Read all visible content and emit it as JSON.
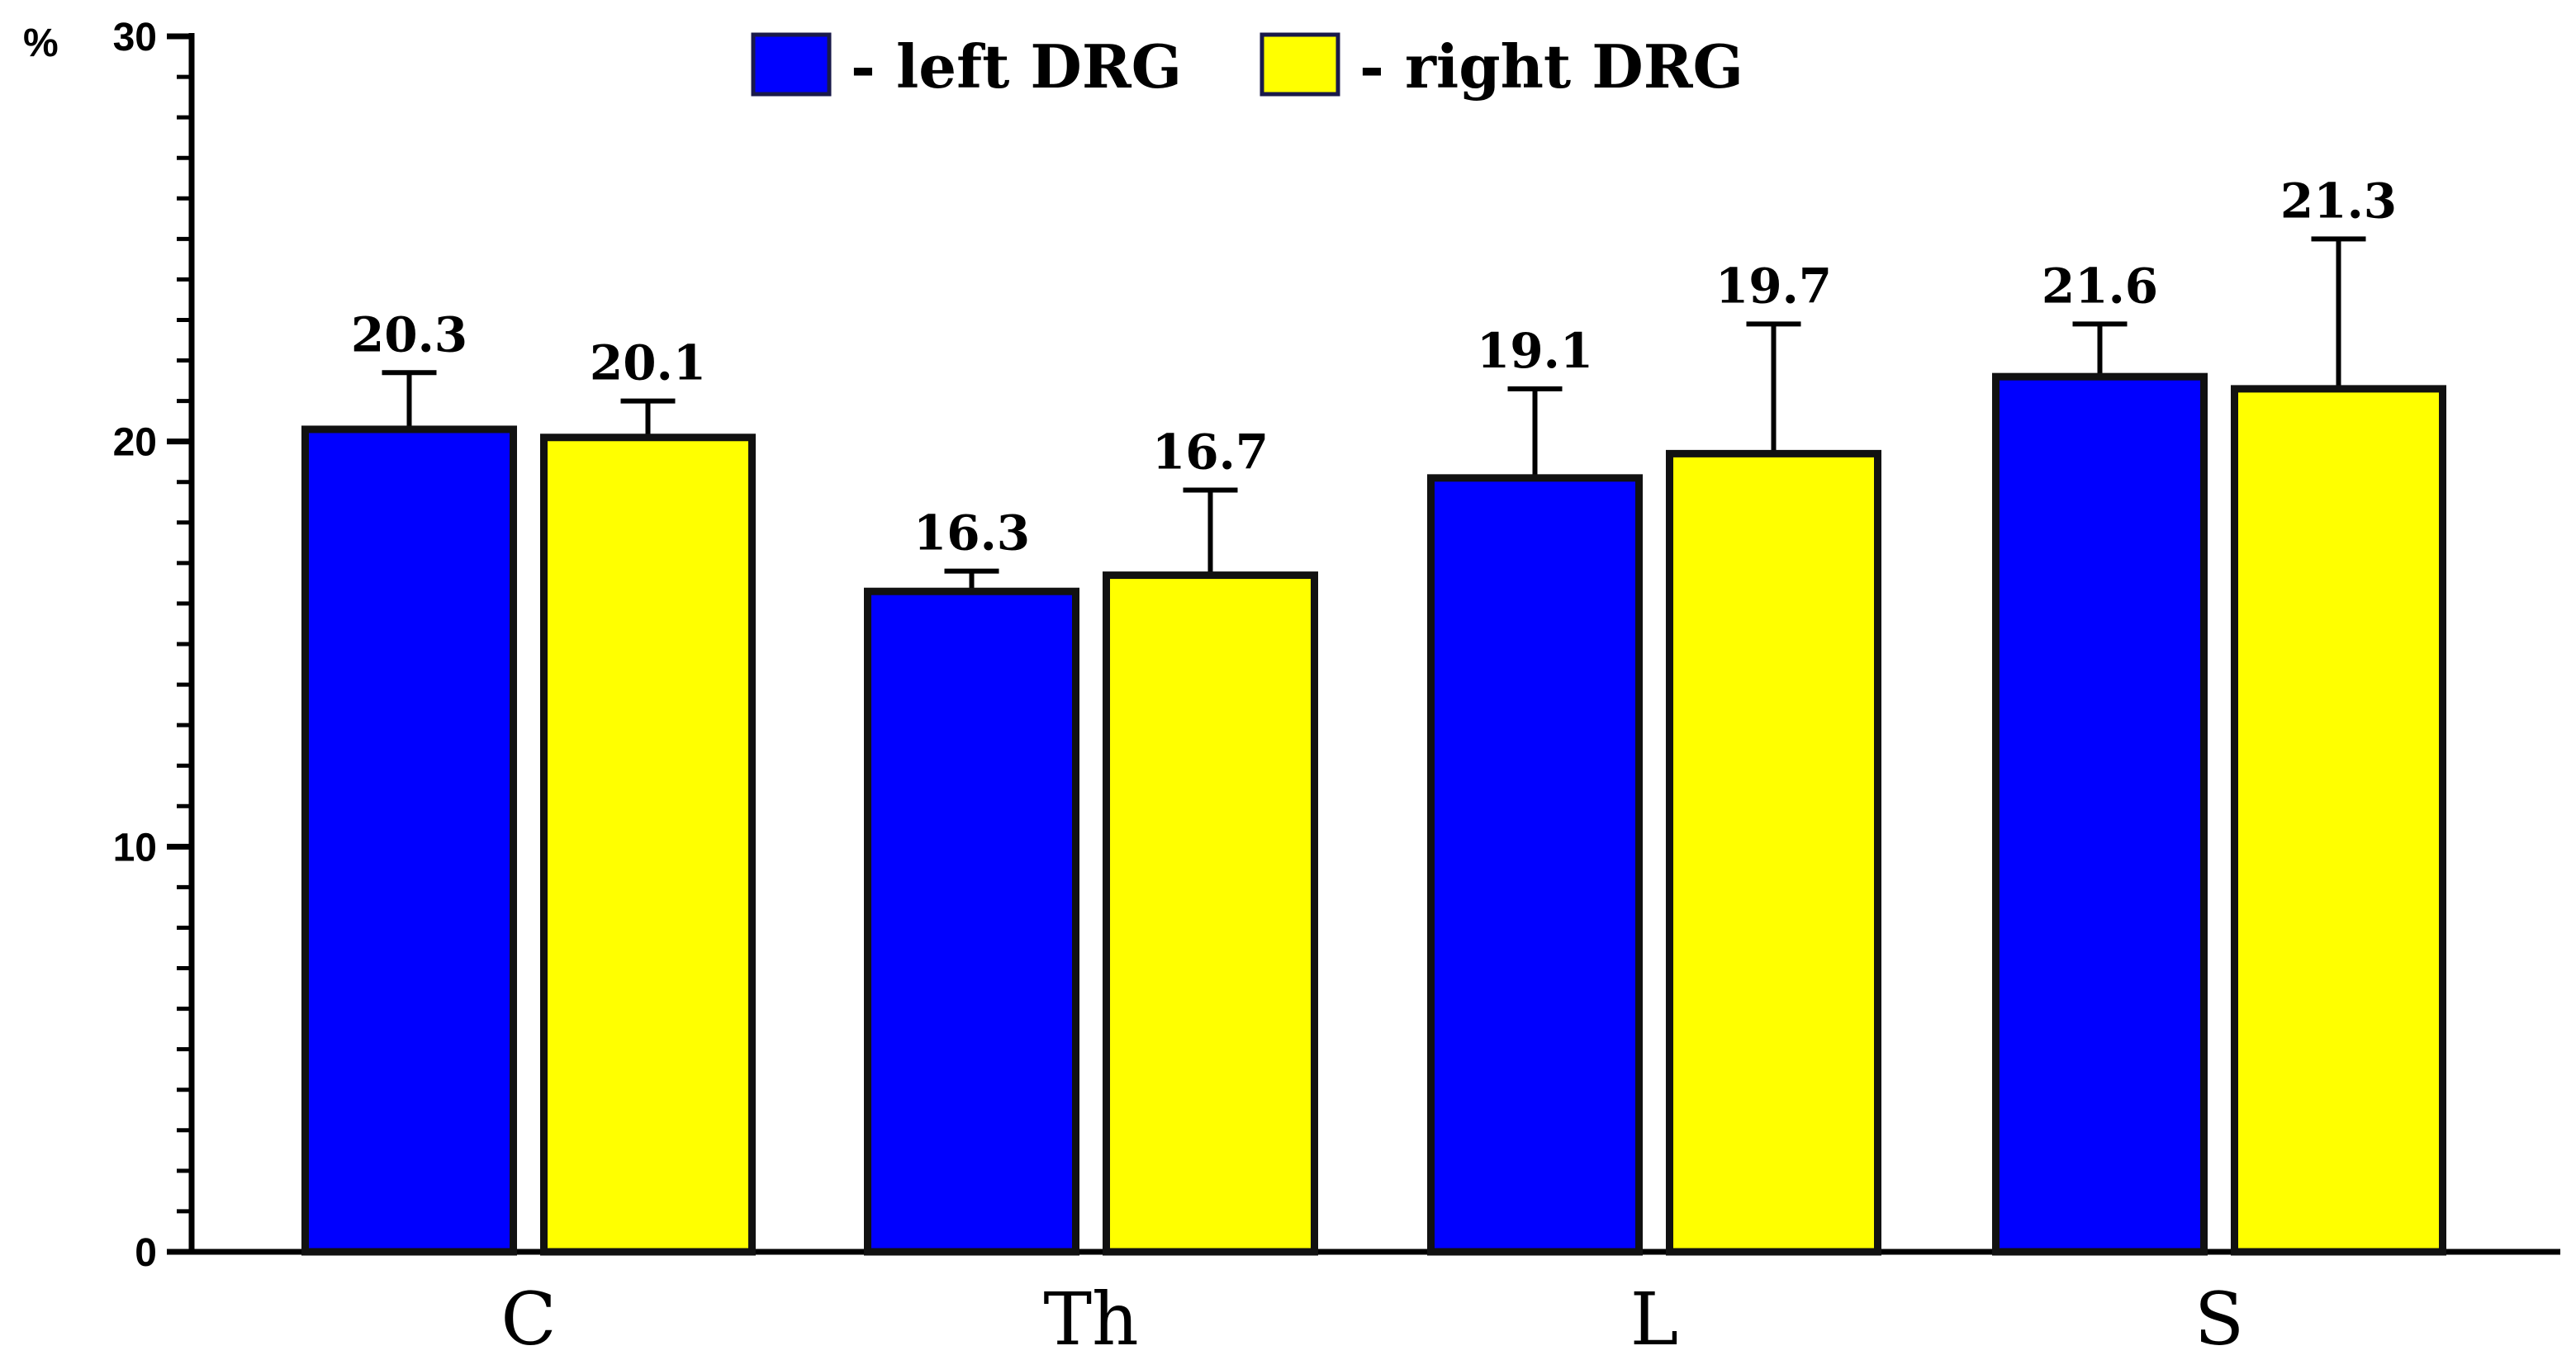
{
  "chart_data": {
    "type": "bar",
    "categories": [
      "C",
      "Th",
      "L",
      "S"
    ],
    "series": [
      {
        "name": "left DRG",
        "legend_text": "- left DRG",
        "color": "#0000ff",
        "values": [
          20.3,
          16.3,
          19.1,
          21.6
        ],
        "labels": [
          "20.3",
          "16.3",
          "19.1",
          "21.6"
        ],
        "error_upper": [
          21.7,
          16.8,
          21.3,
          22.9
        ]
      },
      {
        "name": "right DRG",
        "legend_text": "- right DRG",
        "color": "#ffff00",
        "values": [
          20.1,
          16.7,
          19.7,
          21.3
        ],
        "labels": [
          "20.1",
          "16.7",
          "19.7",
          "21.3"
        ],
        "error_upper": [
          21.0,
          18.8,
          22.9,
          25.0
        ]
      }
    ],
    "y_unit": "%",
    "ylim": [
      0,
      30
    ],
    "y_ticks": [
      "0",
      "10",
      "20",
      "30"
    ],
    "grid": false,
    "legend_position": "top"
  }
}
